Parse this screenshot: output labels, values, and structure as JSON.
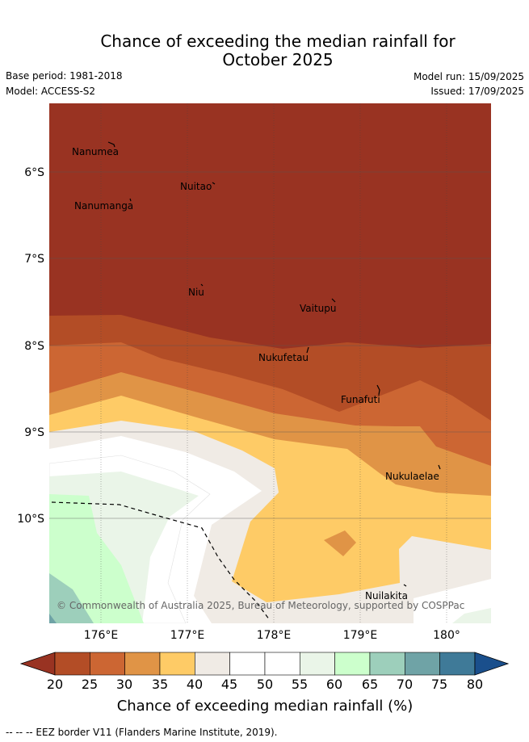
{
  "title_line1": "Chance of exceeding the median rainfall for",
  "title_line2": "October 2025",
  "base_period": "Base period: 1981-2018",
  "model": "Model: ACCESS-S2",
  "model_run": "Model run: 15/09/2025",
  "issued": "Issued: 17/09/2025",
  "copyright": "© Commonwealth of Australia 2025, Bureau of Meteorology, supported by COSPPac",
  "lat_labels": [
    "6°S",
    "7°S",
    "8°S",
    "9°S",
    "10°S"
  ],
  "lon_labels": [
    "176°E",
    "177°E",
    "178°E",
    "179°E",
    "180°"
  ],
  "places": [
    {
      "name": "Nanumea"
    },
    {
      "name": "Nuitao"
    },
    {
      "name": "Nanumanga"
    },
    {
      "name": "Niu"
    },
    {
      "name": "Vaitupu"
    },
    {
      "name": "Nukufetau"
    },
    {
      "name": "Funafuti"
    },
    {
      "name": "Nukulaelae"
    },
    {
      "name": "Nuilakita"
    }
  ],
  "colorbar": {
    "ticks": [
      "20",
      "25",
      "30",
      "35",
      "40",
      "45",
      "50",
      "55",
      "60",
      "65",
      "70",
      "75",
      "80"
    ],
    "colors": [
      "#993322",
      "#b34d26",
      "#cc6633",
      "#e09446",
      "#fecb66",
      "#f0ebe5",
      "#ffffff",
      "#ffffff",
      "#eaf5e8",
      "#ccffcc",
      "#9dcfbb",
      "#6fa3a6",
      "#3f7a98",
      "#1a4f8c"
    ],
    "label": "Chance of exceeding median rainfall (%)"
  },
  "eez_note": "--  --  -- EEZ border V11 (Flanders Marine Institute, 2019)."
}
